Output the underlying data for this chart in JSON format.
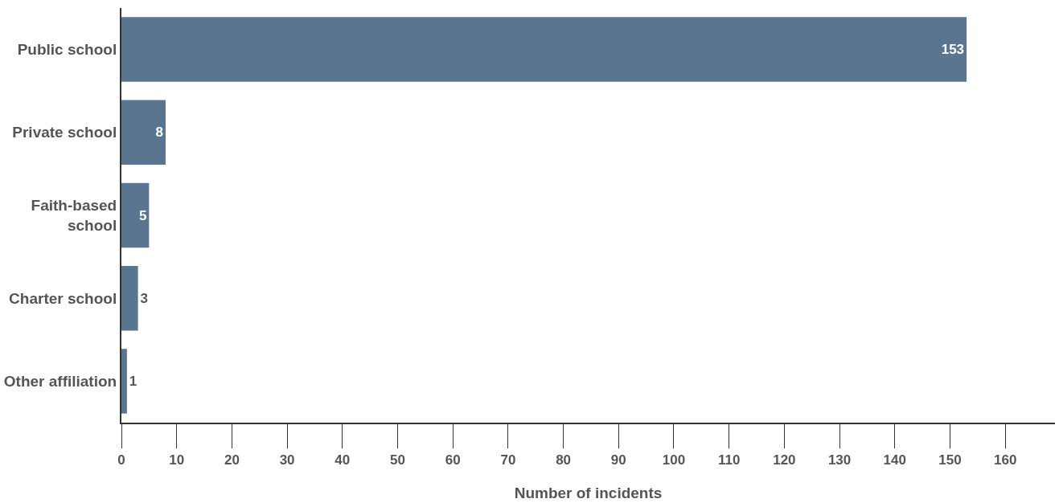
{
  "chart_data": {
    "type": "bar",
    "orientation": "horizontal",
    "categories": [
      "Public school",
      "Private school",
      "Faith-based\nschool",
      "Charter school",
      "Other affiliation"
    ],
    "values": [
      153,
      8,
      5,
      3,
      1
    ],
    "color": "#5a7590",
    "xlabel": "Number of incidents",
    "xlim": [
      0,
      169
    ],
    "xticks": [
      0,
      10,
      20,
      30,
      40,
      50,
      60,
      70,
      80,
      90,
      100,
      110,
      120,
      130,
      140,
      150,
      160
    ],
    "data_labels": true,
    "legend": false
  }
}
